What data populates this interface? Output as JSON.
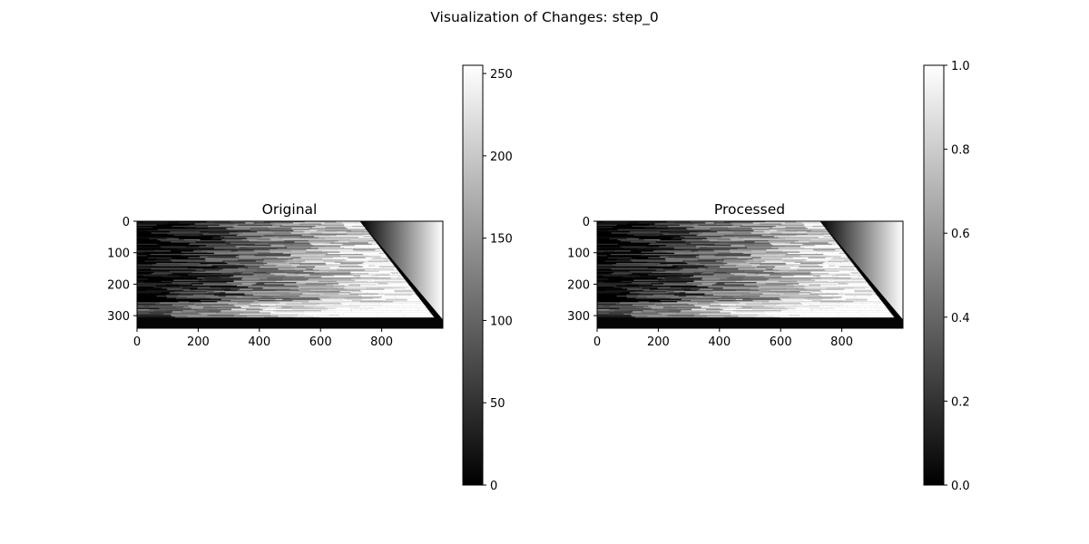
{
  "figure": {
    "suptitle": "Visualization of Changes: step_0"
  },
  "chart_data": [
    {
      "type": "heatmap",
      "title": "Original",
      "colormap": "gray",
      "xlim": [
        0,
        1000
      ],
      "ylim": [
        340,
        0
      ],
      "x_ticks": [
        0,
        200,
        400,
        600,
        800
      ],
      "y_ticks": [
        0,
        100,
        200,
        300
      ],
      "x_tick_labels": [
        "0",
        "200",
        "400",
        "600",
        "800"
      ],
      "y_tick_labels": [
        "0",
        "100",
        "200",
        "300"
      ],
      "colorbar": {
        "range": [
          0,
          255
        ],
        "ticks": [
          0,
          50,
          100,
          150,
          200,
          250
        ],
        "tick_labels": [
          "0",
          "50",
          "100",
          "150",
          "200",
          "250"
        ]
      }
    },
    {
      "type": "heatmap",
      "title": "Processed",
      "colormap": "gray",
      "xlim": [
        0,
        1000
      ],
      "ylim": [
        340,
        0
      ],
      "x_ticks": [
        0,
        200,
        400,
        600,
        800
      ],
      "y_ticks": [
        0,
        100,
        200,
        300
      ],
      "x_tick_labels": [
        "0",
        "200",
        "400",
        "600",
        "800"
      ],
      "y_tick_labels": [
        "0",
        "100",
        "200",
        "300"
      ],
      "colorbar": {
        "range": [
          0,
          1
        ],
        "ticks": [
          0,
          0.2,
          0.4,
          0.6,
          0.8,
          1.0
        ],
        "tick_labels": [
          "0.0",
          "0.2",
          "0.4",
          "0.6",
          "0.8",
          "1.0"
        ]
      }
    }
  ]
}
